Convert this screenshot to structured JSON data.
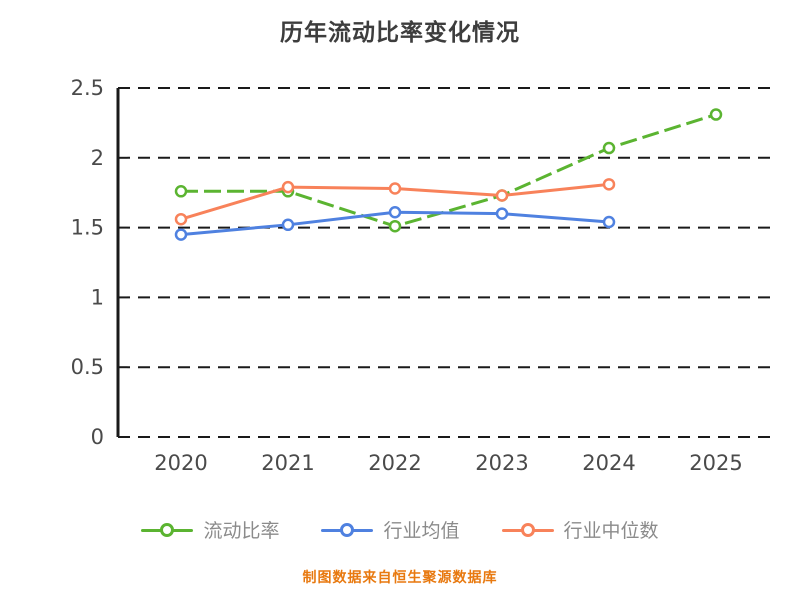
{
  "title": "历年流动比率变化情况",
  "footer": "制图数据来自恒生聚源数据库",
  "colors": {
    "current_ratio": "#5bb431",
    "industry_avg": "#4f81e0",
    "industry_median": "#f8825a",
    "grid": "#1a1a1a",
    "axis_label": "#4a4a4a",
    "title_text": "#3d3d3d",
    "legend_label": "#8b8b8b",
    "footer_text": "#e8790f"
  },
  "chart_data": {
    "type": "line",
    "title": "历年流动比率变化情况",
    "categories": [
      "2020",
      "2021",
      "2022",
      "2023",
      "2024",
      "2025"
    ],
    "series": [
      {
        "name": "流动比率",
        "color": "#5bb431",
        "line_style": "dashed",
        "values": [
          1.76,
          1.76,
          1.51,
          1.73,
          2.07,
          2.31
        ]
      },
      {
        "name": "行业均值",
        "color": "#4f81e0",
        "line_style": "solid",
        "values": [
          1.45,
          1.52,
          1.61,
          1.6,
          1.54,
          null
        ]
      },
      {
        "name": "行业中位数",
        "color": "#f8825a",
        "line_style": "solid",
        "values": [
          1.56,
          1.79,
          1.78,
          1.73,
          1.81,
          null
        ]
      }
    ],
    "xlabel": "",
    "ylabel": "",
    "ylim": [
      0,
      2.5
    ],
    "yticks": [
      0,
      0.5,
      1,
      1.5,
      2,
      2.5
    ],
    "grid": "horizontal dashed black",
    "legend_position": "bottom",
    "source_note": "制图数据来自恒生聚源数据库"
  }
}
